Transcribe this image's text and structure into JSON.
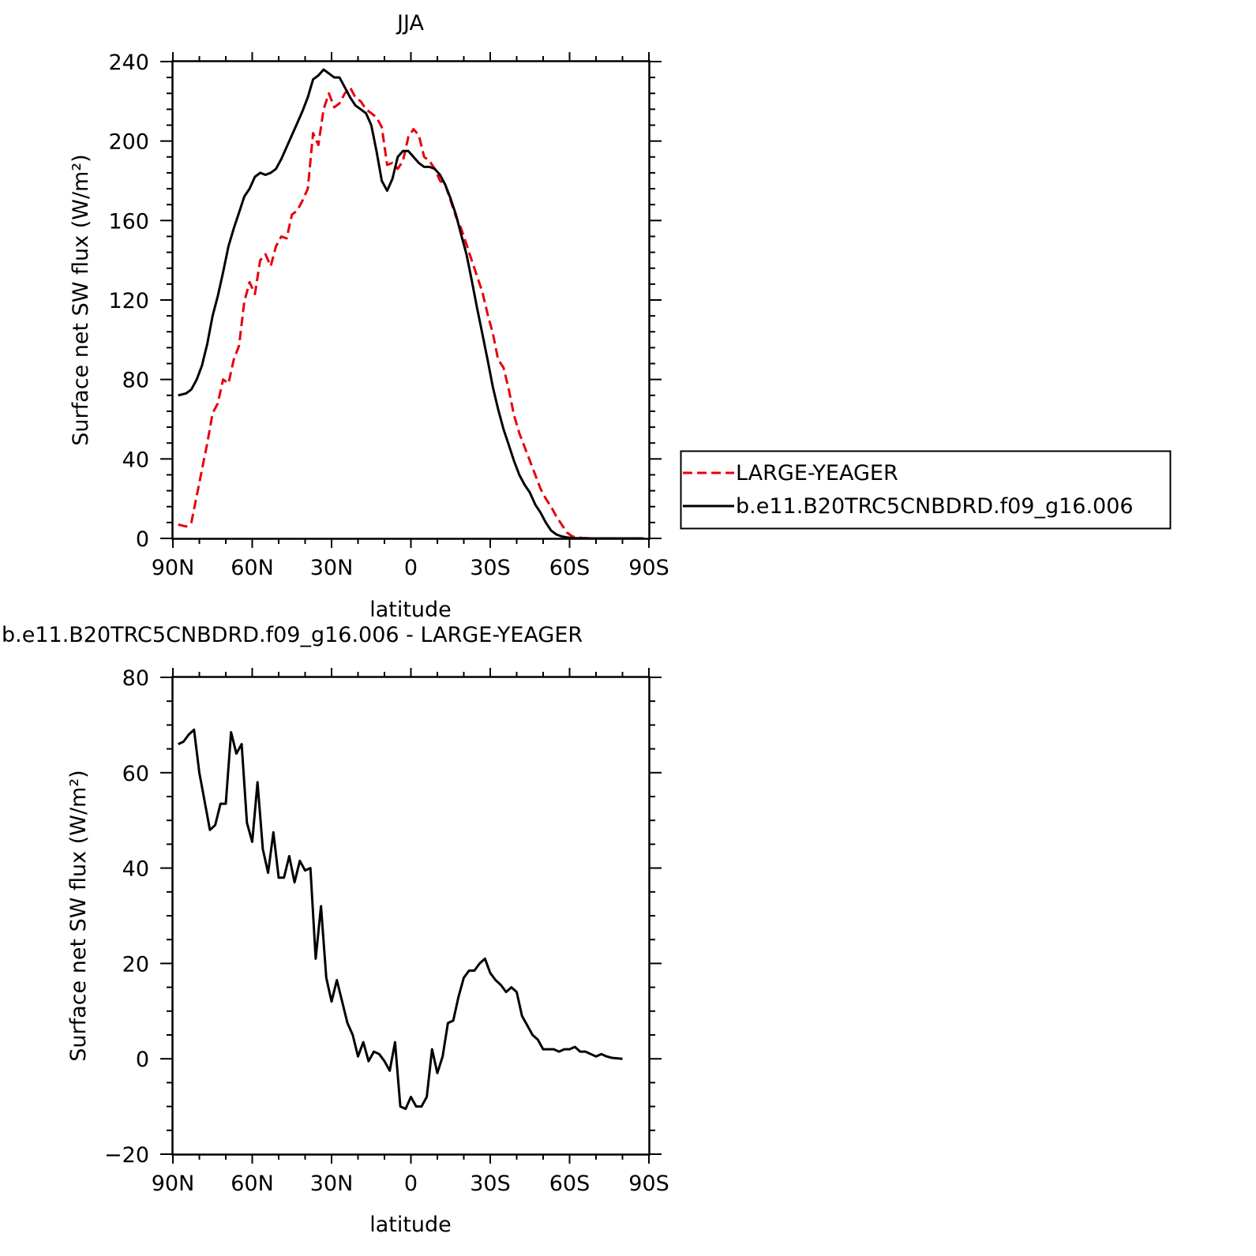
{
  "chart_data": [
    {
      "type": "line",
      "title": "JJA",
      "xlabel": "latitude",
      "ylabel": "Surface net SW flux (W/m²)",
      "ylim": [
        0,
        240
      ],
      "xlim": [
        90,
        -90
      ],
      "x_tick_values": [
        90,
        60,
        30,
        0,
        -30,
        -60,
        -90
      ],
      "x_tick_labels": [
        "90N",
        "60N",
        "30N",
        "0",
        "30S",
        "60S",
        "90S"
      ],
      "y_tick_values": [
        0,
        40,
        80,
        120,
        160,
        200,
        240
      ],
      "y_tick_labels": [
        "0",
        "40",
        "80",
        "120",
        "160",
        "200",
        "240"
      ],
      "legend": {
        "position": "right",
        "box": true
      },
      "series": [
        {
          "name": "LARGE-YEAGER",
          "color": "#e8000b",
          "dash": "dashed",
          "x": [
            88,
            85,
            83,
            80,
            77,
            75,
            73,
            71,
            69,
            67,
            65,
            63,
            61,
            59,
            57,
            55,
            53,
            51,
            49,
            47,
            45,
            43,
            41,
            39,
            37,
            35,
            33,
            31,
            29,
            27,
            25,
            23,
            21,
            19,
            17,
            15,
            13,
            11,
            9,
            7,
            5,
            3,
            1,
            -1,
            -3,
            -5,
            -7,
            -9,
            -11,
            -13,
            -15,
            -17,
            -19,
            -21,
            -23,
            -25,
            -27,
            -29,
            -31,
            -33,
            -35,
            -37,
            -39,
            -41,
            -43,
            -45,
            -47,
            -49,
            -51,
            -53,
            -55,
            -57,
            -59,
            -61,
            -63,
            -65,
            -67,
            -69,
            -71,
            -73,
            -75,
            -77,
            -79,
            -81,
            -83,
            -85,
            -88
          ],
          "y": [
            7,
            6,
            8,
            28,
            48,
            63,
            68,
            80,
            78,
            90,
            97,
            119,
            129,
            123,
            140,
            143,
            137,
            147,
            152,
            151,
            163,
            165,
            170,
            176,
            204,
            198,
            216,
            224,
            217,
            219,
            224,
            227,
            222,
            220,
            216,
            214,
            212,
            207,
            188,
            189,
            186,
            190,
            202,
            206,
            203,
            192,
            190,
            186,
            180,
            178,
            170,
            162,
            156,
            148,
            140,
            132,
            124,
            113,
            103,
            90,
            86,
            75,
            62,
            53,
            46,
            39,
            32,
            25,
            20,
            16,
            11,
            7,
            3,
            1,
            0.5,
            0.2,
            0.1,
            0,
            0,
            0,
            0,
            0,
            0,
            0,
            0,
            0,
            0
          ]
        },
        {
          "name": "b.e11.B20TRC5CNBDRD.f09_g16.006",
          "color": "#000000",
          "dash": "solid",
          "x": [
            88,
            85,
            83,
            81,
            79,
            77,
            75,
            73,
            71,
            69,
            67,
            65,
            63,
            61,
            59,
            57,
            55,
            53,
            51,
            49,
            47,
            45,
            43,
            41,
            39,
            37,
            35,
            33,
            31,
            29,
            27,
            25,
            23,
            21,
            19,
            17,
            15,
            13,
            11,
            9,
            7,
            5,
            3,
            1,
            -1,
            -3,
            -5,
            -7,
            -9,
            -11,
            -13,
            -15,
            -17,
            -19,
            -21,
            -23,
            -25,
            -27,
            -29,
            -31,
            -33,
            -35,
            -37,
            -39,
            -41,
            -43,
            -45,
            -47,
            -49,
            -51,
            -53,
            -55,
            -57,
            -59,
            -61,
            -63,
            -65,
            -67,
            -69,
            -71,
            -73,
            -75,
            -77,
            -79,
            -81,
            -83,
            -85,
            -88
          ],
          "y": [
            72,
            73,
            75,
            80,
            87,
            98,
            112,
            122,
            134,
            147,
            156,
            164,
            172,
            176,
            182,
            184,
            183,
            184,
            186,
            191,
            197,
            203,
            209,
            215,
            222,
            231,
            233,
            236,
            234,
            232,
            232,
            227,
            222,
            218,
            216,
            214,
            208,
            195,
            180,
            175,
            181,
            192,
            195,
            195,
            192,
            189,
            187,
            187,
            186,
            183,
            178,
            171,
            163,
            153,
            143,
            130,
            116,
            103,
            90,
            76,
            65,
            55,
            47,
            39,
            32,
            27,
            23,
            17,
            13,
            8,
            4,
            2,
            1,
            0.5,
            0.2,
            0.1,
            0,
            0,
            0,
            0,
            0,
            0,
            0,
            0,
            0,
            0,
            0,
            0
          ]
        }
      ]
    },
    {
      "type": "line",
      "title": "b.e11.B20TRC5CNBDRD.f09_g16.006 - LARGE-YEAGER",
      "xlabel": "latitude",
      "ylabel": "Surface net SW flux (W/m²)",
      "ylim": [
        -20,
        80
      ],
      "xlim": [
        90,
        -90
      ],
      "x_tick_values": [
        90,
        60,
        30,
        0,
        -30,
        -60,
        -90
      ],
      "x_tick_labels": [
        "90N",
        "60N",
        "30N",
        "0",
        "30S",
        "60S",
        "90S"
      ],
      "y_tick_values": [
        -20,
        0,
        20,
        40,
        60,
        80
      ],
      "y_tick_labels": [
        "−20",
        "0",
        "20",
        "40",
        "60",
        "80"
      ],
      "series": [
        {
          "color": "#000000",
          "dash": "solid",
          "x": [
            88,
            86,
            84,
            82,
            80,
            78,
            76,
            74,
            72,
            70,
            68,
            66,
            64,
            62,
            60,
            58,
            56,
            54,
            52,
            50,
            48,
            46,
            44,
            42,
            40,
            38,
            36,
            34,
            32,
            30,
            28,
            26,
            24,
            22,
            20,
            18,
            16,
            14,
            12,
            10,
            8,
            6,
            4,
            2,
            0,
            -2,
            -4,
            -6,
            -8,
            -10,
            -12,
            -14,
            -16,
            -18,
            -20,
            -22,
            -24,
            -26,
            -28,
            -30,
            -32,
            -34,
            -36,
            -38,
            -40,
            -42,
            -44,
            -46,
            -48,
            -50,
            -52,
            -54,
            -56,
            -58,
            -60,
            -62,
            -64,
            -66,
            -68,
            -70,
            -72,
            -74,
            -76,
            -78,
            -80
          ],
          "y": [
            66,
            66.5,
            68,
            69,
            60,
            54,
            48,
            49,
            53.5,
            53.5,
            68.5,
            64,
            66,
            49.5,
            45.5,
            58,
            44,
            39,
            47.5,
            38,
            38,
            42.5,
            37,
            41.5,
            39.5,
            40,
            21,
            32,
            17,
            12,
            16.5,
            12,
            7.5,
            5,
            0.5,
            3.5,
            -0.5,
            1.5,
            1,
            -0.5,
            -2.5,
            3.5,
            -10,
            -10.5,
            -8,
            -10,
            -10,
            -8,
            2,
            -3,
            0.5,
            7.5,
            8,
            13,
            17,
            18.5,
            18.5,
            20,
            21,
            18,
            16.5,
            15.5,
            14,
            15,
            14,
            9,
            7,
            5,
            4,
            2,
            2,
            2,
            1.5,
            2,
            2,
            2.5,
            1.5,
            1.5,
            1,
            0.5,
            1,
            0.5,
            0.2,
            0.1,
            0
          ]
        }
      ]
    }
  ]
}
